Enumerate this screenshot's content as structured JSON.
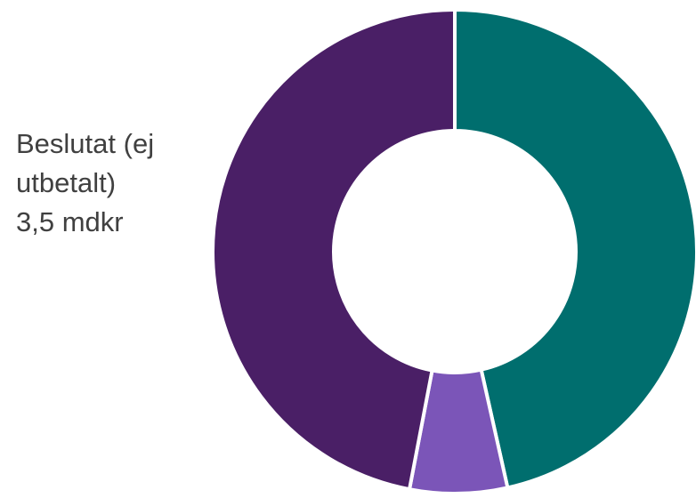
{
  "chart_data": {
    "type": "pie",
    "donut": true,
    "slices": [
      {
        "label": "",
        "value": 46.5,
        "color": "#006E6E"
      },
      {
        "label": "",
        "value": 6.5,
        "color": "#7B55B8"
      },
      {
        "label": "Beslutat (ej utbetalt) 3,5 mdkr",
        "value": 47.0,
        "color": "#4A1F66"
      }
    ],
    "start_angle_deg": 0,
    "direction": "clockwise",
    "legend": "none"
  },
  "labels": {
    "decided_line1": "Beslutat (ej",
    "decided_line2": "utbetalt)",
    "decided_line3": "3,5 mdkr"
  }
}
